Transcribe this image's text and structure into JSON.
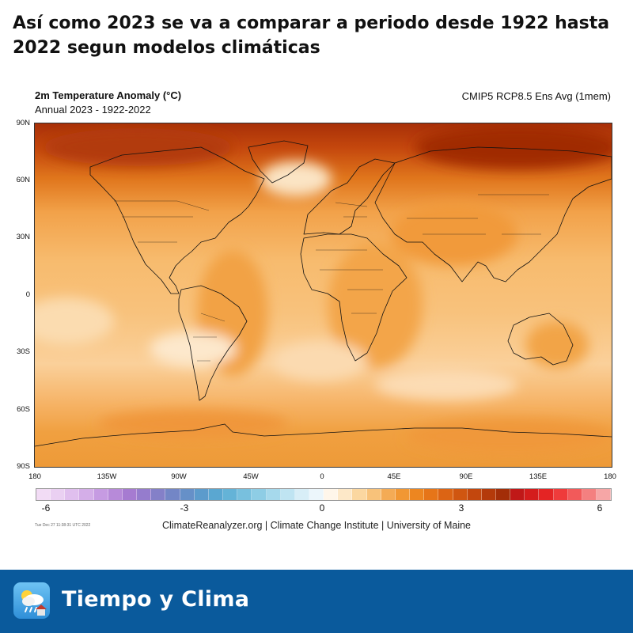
{
  "headline": "Así como 2023 se va a comparar a periodo desde 1922 hasta 2022 segun modelos climáticas",
  "map": {
    "title": "2m Temperature Anomaly (°C)",
    "subtitle": "Annual 2023 - 1922-2022",
    "model": "CMIP5 RCP8.5 Ens Avg (1mem)",
    "lat_labels": [
      "90N",
      "60N",
      "30N",
      "0",
      "30S",
      "60S",
      "90S"
    ],
    "lon_labels": [
      "180",
      "135W",
      "90W",
      "45W",
      "0",
      "45E",
      "90E",
      "135E",
      "180"
    ]
  },
  "colorbar": {
    "ticks": [
      "-6",
      "-3",
      "0",
      "3",
      "6"
    ],
    "colors": [
      "#f2dcf5",
      "#ead0f2",
      "#e0bfee",
      "#d4aee8",
      "#c69be2",
      "#b78ad9",
      "#a67bd1",
      "#957ccd",
      "#8480c8",
      "#7386c6",
      "#6690c8",
      "#5c9bcc",
      "#5aa7d1",
      "#64b3d7",
      "#78c0de",
      "#8ecde5",
      "#a6d9ec",
      "#bfe4f2",
      "#d8eef7",
      "#ecf6fb",
      "#fff6ea",
      "#fde8c8",
      "#fbd7a0",
      "#f8c27a",
      "#f4ab55",
      "#f19733",
      "#ed8620",
      "#e67518",
      "#dc6414",
      "#d05610",
      "#c3470d",
      "#b43a0a",
      "#a32e08",
      "#c01818",
      "#d41c1c",
      "#e42424",
      "#ef3b3b",
      "#f25a5a",
      "#f48080",
      "#f6a6a6"
    ]
  },
  "credit": "ClimateReanalyzer.org | Climate Change Institute | University of Maine",
  "timestamp": "Tue Dec 27 11:38:31 UTC 2022",
  "footer": {
    "brand": "Tiempo y Clima",
    "icon": "weather-cloud-sun-rain-icon",
    "background": "#0a5a9c"
  }
}
